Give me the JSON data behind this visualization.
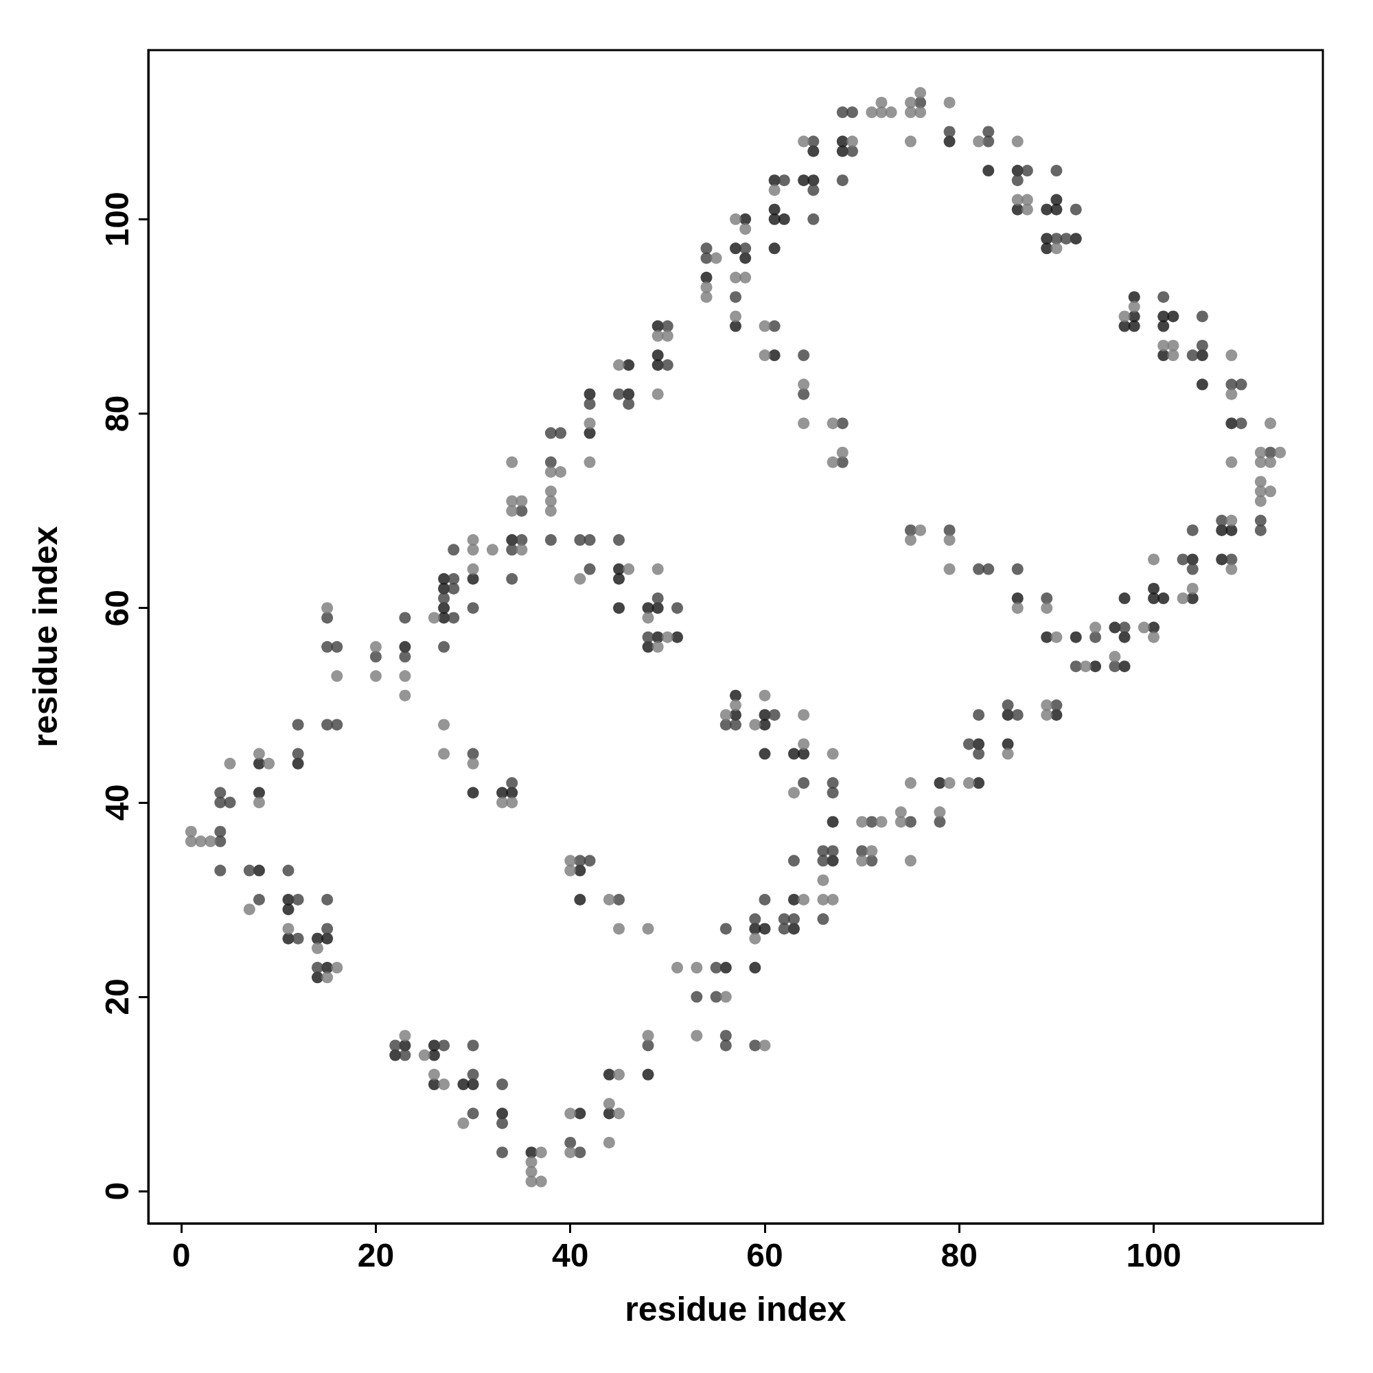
{
  "chart_data": {
    "type": "scatter",
    "xlabel": "residue index",
    "ylabel": "residue index",
    "xlim": [
      -3.4,
      117.4
    ],
    "ylim": [
      -3.3,
      117.4
    ],
    "xticks": [
      0,
      20,
      40,
      60,
      80,
      100
    ],
    "yticks": [
      0,
      20,
      40,
      60,
      80,
      100
    ],
    "marker": "circle",
    "series": [
      {
        "color": "#141414",
        "x": [
          8,
          8,
          8,
          11,
          11,
          11,
          12,
          14,
          15,
          14,
          15,
          23,
          22,
          23,
          26,
          26,
          26,
          29,
          30,
          33,
          36,
          41,
          44,
          44,
          48,
          27,
          27,
          27,
          27,
          30,
          34,
          42,
          42,
          46,
          46,
          49,
          49,
          49,
          54,
          57,
          58,
          58,
          57,
          61,
          61,
          62,
          61,
          61,
          64,
          65,
          65,
          68,
          68,
          79,
          83,
          86,
          86,
          90,
          89,
          90,
          89,
          92,
          89,
          98,
          98,
          97,
          98,
          101,
          102,
          101,
          101,
          105,
          105,
          108,
          107,
          108,
          107,
          104,
          104,
          100,
          100,
          101,
          97,
          96,
          97,
          100,
          97,
          92,
          94,
          89,
          86,
          90,
          85,
          85,
          82,
          82,
          78,
          67,
          67,
          64,
          63,
          60,
          60,
          60,
          57,
          57,
          63,
          63,
          59,
          60,
          59,
          56,
          30,
          33,
          34,
          41,
          41,
          45,
          45,
          45,
          48,
          49,
          49,
          51,
          48,
          61
        ],
        "values": [
          41,
          44,
          33,
          30,
          29,
          26,
          44,
          22,
          23,
          26,
          26,
          56,
          14,
          15,
          14,
          15,
          11,
          11,
          11,
          8,
          4,
          8,
          12,
          8,
          12,
          59,
          60,
          62,
          63,
          63,
          67,
          78,
          82,
          82,
          85,
          85,
          86,
          89,
          94,
          97,
          96,
          100,
          89,
          97,
          100,
          100,
          101,
          104,
          104,
          104,
          107,
          107,
          108,
          108,
          105,
          105,
          101,
          102,
          101,
          101,
          98,
          98,
          97,
          92,
          90,
          89,
          89,
          90,
          90,
          89,
          86,
          86,
          83,
          79,
          68,
          68,
          65,
          65,
          61,
          62,
          61,
          61,
          61,
          58,
          57,
          58,
          54,
          57,
          54,
          57,
          61,
          49,
          49,
          46,
          46,
          42,
          42,
          38,
          34,
          45,
          45,
          49,
          48,
          45,
          51,
          49,
          30,
          27,
          27,
          27,
          23,
          23,
          41,
          41,
          41,
          33,
          30,
          64,
          63,
          60,
          60,
          60,
          57,
          57,
          56,
          86
        ]
      },
      {
        "color": "#404040",
        "x": [
          4,
          4,
          4,
          5,
          4,
          4,
          7,
          8,
          11,
          12,
          12,
          12,
          12,
          14,
          15,
          15,
          15,
          16,
          15,
          16,
          15,
          20,
          23,
          23,
          22,
          23,
          27,
          30,
          30,
          30,
          33,
          33,
          33,
          40,
          41,
          48,
          28,
          27,
          28,
          28,
          27,
          28,
          30,
          34,
          34,
          35,
          35,
          38,
          38,
          38,
          39,
          42,
          45,
          46,
          50,
          50,
          54,
          54,
          57,
          58,
          62,
          65,
          65,
          65,
          68,
          69,
          68,
          69,
          76,
          79,
          83,
          83,
          87,
          86,
          90,
          92,
          90,
          91,
          101,
          105,
          104,
          105,
          108,
          109,
          109,
          112,
          111,
          111,
          107,
          108,
          104,
          104,
          103,
          97,
          96,
          94,
          92,
          89,
          86,
          82,
          83,
          79,
          75,
          90,
          85,
          86,
          82,
          81,
          82,
          78,
          75,
          71,
          70,
          71,
          67,
          67,
          67,
          66,
          66,
          66,
          64,
          61,
          56,
          57,
          63,
          62,
          63,
          62,
          60,
          59,
          56,
          55,
          53,
          55,
          56,
          56,
          59,
          30,
          34,
          41,
          42,
          45,
          41,
          42,
          42,
          45,
          49,
          51,
          48,
          61,
          64,
          64,
          68,
          68
        ],
        "values": [
          36,
          37,
          40,
          40,
          41,
          33,
          33,
          30,
          33,
          30,
          26,
          45,
          48,
          23,
          27,
          30,
          48,
          48,
          56,
          56,
          59,
          55,
          59,
          55,
          15,
          14,
          15,
          12,
          15,
          8,
          11,
          7,
          4,
          5,
          4,
          15,
          59,
          61,
          62,
          63,
          56,
          66,
          60,
          63,
          66,
          67,
          70,
          67,
          75,
          78,
          78,
          81,
          82,
          81,
          85,
          89,
          96,
          97,
          92,
          97,
          104,
          103,
          100,
          108,
          104,
          107,
          111,
          111,
          112,
          109,
          108,
          109,
          105,
          104,
          105,
          101,
          98,
          98,
          92,
          90,
          86,
          87,
          83,
          83,
          79,
          76,
          69,
          68,
          69,
          65,
          68,
          64,
          65,
          58,
          54,
          57,
          54,
          61,
          64,
          64,
          64,
          68,
          68,
          50,
          50,
          49,
          49,
          46,
          45,
          38,
          38,
          38,
          35,
          34,
          42,
          41,
          35,
          35,
          34,
          28,
          42,
          49,
          48,
          48,
          34,
          28,
          28,
          27,
          30,
          28,
          27,
          23,
          20,
          20,
          16,
          15,
          15,
          45,
          42,
          34,
          34,
          30,
          67,
          67,
          64,
          67,
          61,
          60,
          57,
          89,
          86,
          82,
          79,
          75
        ]
      },
      {
        "color": "#7a7a7a",
        "x": [
          1,
          1,
          2,
          3,
          5,
          7,
          8,
          8,
          9,
          11,
          14,
          15,
          16,
          15,
          16,
          20,
          20,
          23,
          23,
          23,
          25,
          26,
          27,
          29,
          37,
          36,
          36,
          36,
          37,
          40,
          40,
          45,
          44,
          45,
          44,
          48,
          26,
          30,
          30,
          30,
          32,
          35,
          34,
          34,
          35,
          34,
          38,
          38,
          38,
          38,
          39,
          42,
          42,
          45,
          49,
          49,
          50,
          54,
          54,
          55,
          57,
          58,
          58,
          57,
          57,
          61,
          64,
          69,
          71,
          72,
          73,
          72,
          75,
          76,
          75,
          76,
          75,
          79,
          82,
          86,
          86,
          87,
          87,
          90,
          97,
          98,
          101,
          102,
          102,
          108,
          108,
          108,
          111,
          113,
          111,
          112,
          112,
          111,
          111,
          112,
          111,
          108,
          108,
          104,
          103,
          100,
          99,
          100,
          96,
          94,
          93,
          89,
          90,
          86,
          79,
          79,
          76,
          75,
          89,
          89,
          85,
          81,
          79,
          78,
          75,
          74,
          74,
          75,
          70,
          72,
          71,
          70,
          67,
          66,
          66,
          67,
          64,
          64,
          63,
          60,
          59,
          57,
          56,
          64,
          59,
          51,
          53,
          56,
          53,
          60,
          27,
          27,
          30,
          33,
          34,
          40,
          40,
          44,
          45,
          48,
          41,
          46,
          49,
          48,
          50,
          49,
          60,
          60,
          64,
          64,
          67,
          68,
          67
        ],
        "values": [
          37,
          36,
          36,
          36,
          44,
          29,
          40,
          45,
          44,
          27,
          25,
          22,
          23,
          60,
          53,
          56,
          53,
          53,
          51,
          16,
          14,
          12,
          11,
          7,
          4,
          3,
          2,
          1,
          1,
          8,
          4,
          12,
          9,
          8,
          5,
          16,
          59,
          64,
          66,
          67,
          66,
          66,
          70,
          71,
          71,
          75,
          70,
          71,
          72,
          74,
          74,
          75,
          79,
          85,
          82,
          88,
          88,
          92,
          93,
          96,
          94,
          94,
          99,
          100,
          90,
          103,
          108,
          108,
          111,
          111,
          111,
          112,
          111,
          111,
          112,
          113,
          108,
          112,
          108,
          108,
          102,
          102,
          101,
          97,
          90,
          91,
          87,
          87,
          86,
          86,
          82,
          75,
          76,
          76,
          75,
          75,
          79,
          73,
          72,
          72,
          71,
          69,
          64,
          62,
          61,
          65,
          58,
          57,
          55,
          58,
          54,
          60,
          57,
          60,
          67,
          64,
          68,
          67,
          50,
          49,
          45,
          42,
          42,
          39,
          42,
          39,
          38,
          34,
          38,
          38,
          35,
          34,
          45,
          32,
          30,
          30,
          49,
          46,
          41,
          51,
          48,
          50,
          49,
          30,
          26,
          23,
          23,
          20,
          16,
          15,
          48,
          45,
          44,
          40,
          40,
          34,
          33,
          30,
          27,
          27,
          63,
          64,
          64,
          59,
          57,
          56,
          89,
          86,
          83,
          79,
          79,
          76,
          75
        ]
      }
    ]
  }
}
